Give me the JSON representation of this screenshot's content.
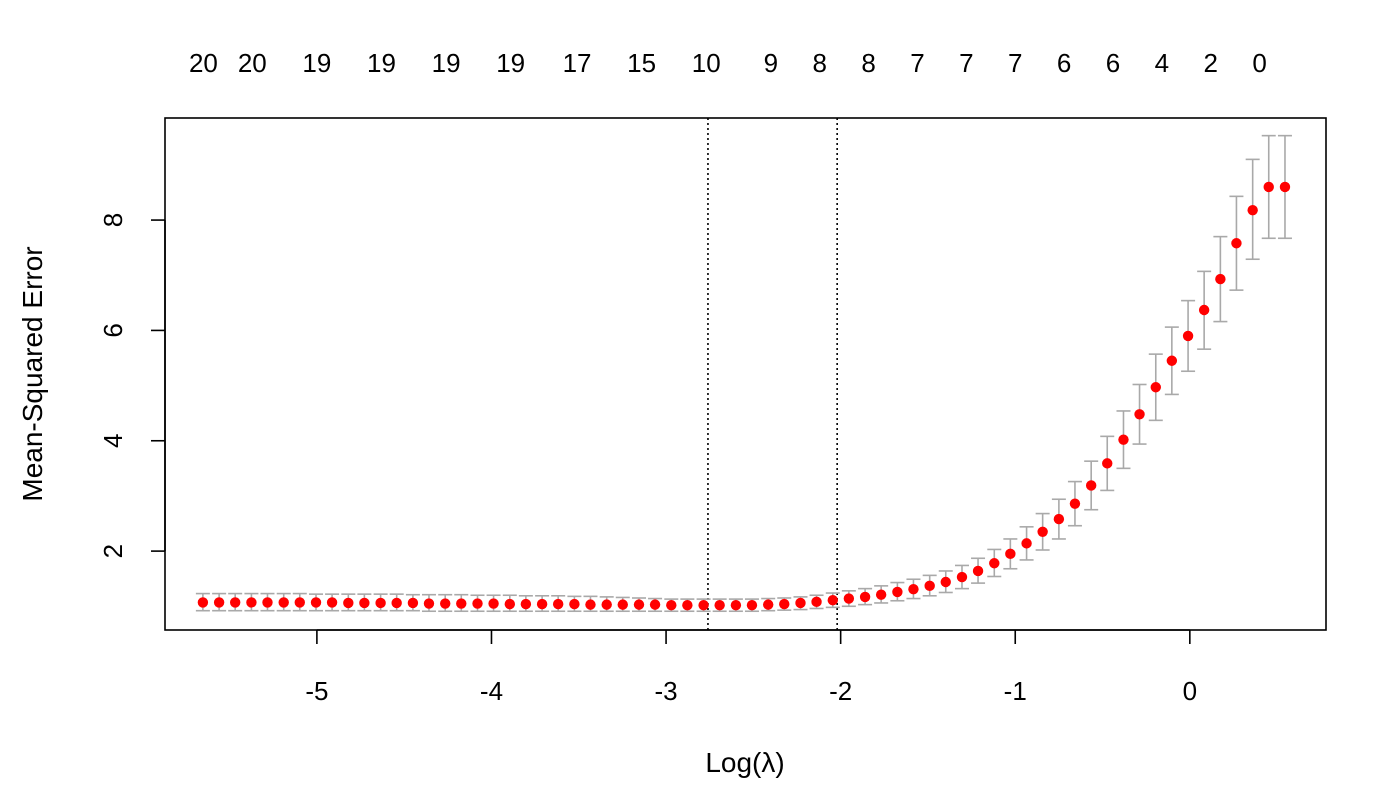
{
  "chart_data": {
    "type": "scatter",
    "title": "",
    "xlabel": "Log(λ)",
    "ylabel": "Mean-Squared Error",
    "xlim": [
      -5.87,
      0.78
    ],
    "ylim": [
      0.57,
      9.85
    ],
    "x_ticks": [
      -5,
      -4,
      -3,
      -2,
      -1,
      0
    ],
    "y_ticks": [
      2,
      4,
      6,
      8
    ],
    "grid": false,
    "legend": "none",
    "top_axis": {
      "x": [
        -5.65,
        -5.37,
        -5.0,
        -4.63,
        -4.26,
        -3.89,
        -3.51,
        -3.14,
        -2.77,
        -2.4,
        -2.12,
        -1.84,
        -1.56,
        -1.28,
        -1.0,
        -0.72,
        -0.44,
        -0.16,
        0.12,
        0.4
      ],
      "labels": [
        "20",
        "20",
        "19",
        "19",
        "19",
        "19",
        "17",
        "15",
        "10",
        "9",
        "8",
        "8",
        "7",
        "7",
        "7",
        "6",
        "6",
        "4",
        "2",
        "0"
      ]
    },
    "vlines": [
      -2.76,
      -2.02
    ],
    "series": [
      {
        "x": [
          -5.653,
          -5.56,
          -5.468,
          -5.375,
          -5.283,
          -5.19,
          -5.098,
          -5.005,
          -4.913,
          -4.82,
          -4.728,
          -4.635,
          -4.543,
          -4.45,
          -4.358,
          -4.265,
          -4.173,
          -4.08,
          -3.988,
          -3.895,
          -3.803,
          -3.71,
          -3.618,
          -3.525,
          -3.433,
          -3.34,
          -3.248,
          -3.155,
          -3.063,
          -2.97,
          -2.878,
          -2.785,
          -2.693,
          -2.6,
          -2.508,
          -2.415,
          -2.323,
          -2.23,
          -2.138,
          -2.045,
          -1.953,
          -1.86,
          -1.768,
          -1.675,
          -1.583,
          -1.49,
          -1.398,
          -1.305,
          -1.213,
          -1.12,
          -1.028,
          -0.935,
          -0.843,
          -0.75,
          -0.658,
          -0.565,
          -0.473,
          -0.38,
          -0.288,
          -0.195,
          -0.103,
          -0.01,
          0.082,
          0.175,
          0.267,
          0.36,
          0.452,
          0.545
        ],
        "y": [
          1.07,
          1.07,
          1.07,
          1.07,
          1.07,
          1.07,
          1.07,
          1.07,
          1.07,
          1.06,
          1.06,
          1.06,
          1.06,
          1.06,
          1.05,
          1.05,
          1.05,
          1.05,
          1.05,
          1.04,
          1.04,
          1.04,
          1.04,
          1.04,
          1.03,
          1.03,
          1.03,
          1.03,
          1.03,
          1.02,
          1.02,
          1.02,
          1.02,
          1.02,
          1.02,
          1.03,
          1.04,
          1.06,
          1.08,
          1.11,
          1.14,
          1.17,
          1.21,
          1.26,
          1.31,
          1.37,
          1.44,
          1.53,
          1.64,
          1.78,
          1.95,
          2.14,
          2.35,
          2.58,
          2.86,
          3.19,
          3.59,
          4.02,
          4.48,
          4.97,
          5.45,
          5.9,
          6.37,
          6.93,
          7.58,
          8.18,
          8.6,
          8.6
        ],
        "y_low": [
          0.92,
          0.92,
          0.92,
          0.92,
          0.92,
          0.92,
          0.92,
          0.92,
          0.92,
          0.92,
          0.92,
          0.92,
          0.92,
          0.92,
          0.91,
          0.91,
          0.91,
          0.91,
          0.91,
          0.91,
          0.91,
          0.91,
          0.91,
          0.91,
          0.91,
          0.91,
          0.91,
          0.91,
          0.91,
          0.91,
          0.91,
          0.91,
          0.91,
          0.91,
          0.91,
          0.92,
          0.93,
          0.94,
          0.96,
          0.98,
          1.0,
          1.03,
          1.06,
          1.1,
          1.14,
          1.19,
          1.25,
          1.32,
          1.42,
          1.54,
          1.68,
          1.84,
          2.02,
          2.22,
          2.46,
          2.75,
          3.1,
          3.5,
          3.94,
          4.37,
          4.84,
          5.26,
          5.66,
          6.16,
          6.73,
          7.29,
          7.67,
          7.67
        ],
        "y_high": [
          1.23,
          1.23,
          1.23,
          1.23,
          1.23,
          1.23,
          1.23,
          1.22,
          1.22,
          1.22,
          1.22,
          1.22,
          1.22,
          1.21,
          1.21,
          1.21,
          1.21,
          1.2,
          1.2,
          1.2,
          1.19,
          1.19,
          1.19,
          1.18,
          1.18,
          1.17,
          1.16,
          1.15,
          1.14,
          1.13,
          1.13,
          1.13,
          1.13,
          1.13,
          1.13,
          1.14,
          1.15,
          1.17,
          1.2,
          1.24,
          1.28,
          1.32,
          1.37,
          1.43,
          1.49,
          1.56,
          1.64,
          1.74,
          1.87,
          2.03,
          2.22,
          2.44,
          2.68,
          2.94,
          3.26,
          3.63,
          4.08,
          4.54,
          5.02,
          5.57,
          6.06,
          6.54,
          7.07,
          7.7,
          8.43,
          9.1,
          9.53,
          9.53
        ]
      }
    ],
    "colors": {
      "points": "#ff0000",
      "error_bars": "#a9a9a9",
      "axes": "#000000"
    }
  }
}
